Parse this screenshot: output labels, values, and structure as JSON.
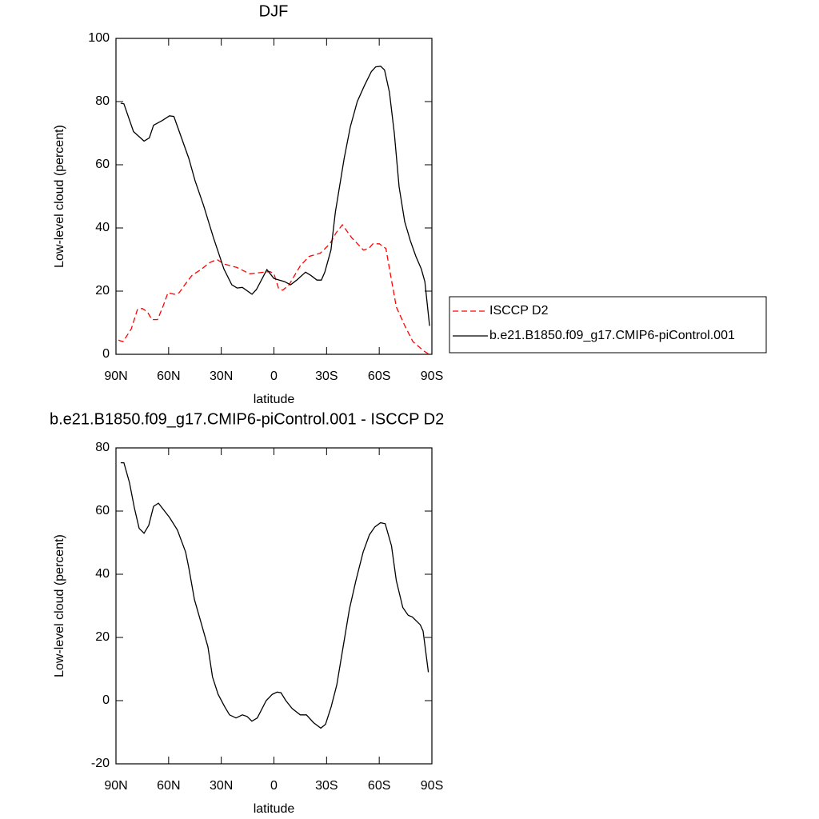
{
  "chart_data": [
    {
      "type": "line",
      "title": "DJF",
      "xlabel": "latitude",
      "ylabel": "Low-level cloud (percent)",
      "xlim": [
        90,
        -90
      ],
      "xticks": [
        {
          "value": 90,
          "label": "90N"
        },
        {
          "value": 60,
          "label": "60N"
        },
        {
          "value": 30,
          "label": "30N"
        },
        0,
        {
          "value": -30,
          "label": "30S"
        },
        {
          "value": -60,
          "label": "60S"
        },
        {
          "value": -90,
          "label": "90S"
        }
      ],
      "ylim": [
        0,
        100
      ],
      "yticks": [
        0,
        20,
        40,
        60,
        80,
        100
      ],
      "legend": "right",
      "series": [
        {
          "name": "ISCCP D2",
          "color": "#ff0000",
          "dash": true,
          "x": [
            88.6,
            86,
            81.3,
            77.7,
            75,
            72.2,
            69.5,
            66.3,
            63,
            60.4,
            56.7,
            54,
            50.8,
            46.7,
            41.2,
            36.7,
            32.5,
            28,
            21.1,
            13.9,
            5.5,
            2.3,
            0,
            -2.7,
            -5,
            -8.6,
            -15,
            -20,
            -26.4,
            -31.9,
            -35.5,
            -39,
            -44.2,
            -51,
            -54,
            -56.4,
            -60,
            -63.8,
            -66.5,
            -69.7,
            -74.6,
            -79.2,
            -85.6,
            -88.4
          ],
          "values": [
            4.5,
            4,
            8,
            14.3,
            14.5,
            13.5,
            11,
            11,
            15.5,
            19.5,
            19,
            19.5,
            22,
            25,
            27,
            29,
            30,
            28.5,
            27.5,
            25.5,
            26,
            26.2,
            25.5,
            20.8,
            20.3,
            22,
            28,
            31,
            32,
            35,
            38.5,
            41,
            37,
            33,
            33.5,
            35,
            35,
            33.5,
            25,
            15,
            9,
            4,
            1,
            0
          ]
        },
        {
          "name": "b.e21.B1850.f09_g17.CMIP6-piControl.001",
          "color": "#000000",
          "dash": false,
          "x": [
            87.3,
            85.5,
            80,
            74,
            71,
            68.6,
            63.6,
            59.5,
            57,
            48.5,
            45,
            40,
            34.5,
            28.5,
            24,
            21,
            18,
            12.5,
            10,
            4,
            0,
            -6,
            -9.5,
            -13,
            -18,
            -21,
            -24.5,
            -27,
            -29,
            -32.5,
            -35,
            -40,
            -43.5,
            -47.5,
            -51.5,
            -55.5,
            -58,
            -60.8,
            -63,
            -65.8,
            -68.6,
            -71.3,
            -74.5,
            -77.7,
            -80.9,
            -84,
            -86,
            -88.7
          ],
          "values": [
            79.5,
            79.3,
            70.5,
            67.5,
            68.5,
            72.5,
            74,
            75.5,
            75.3,
            62,
            55,
            47,
            37,
            27,
            22,
            21,
            21.2,
            19,
            20.5,
            26.8,
            24,
            23,
            22,
            23.5,
            26,
            25,
            23.5,
            23.5,
            26,
            33,
            45,
            62,
            72,
            80,
            85,
            89.5,
            91,
            91.2,
            90,
            83,
            70,
            53,
            42,
            36,
            31,
            27,
            23,
            9
          ]
        }
      ]
    },
    {
      "type": "line",
      "title": "b.e21.B1850.f09_g17.CMIP6-piControl.001 - ISCCP D2",
      "xlabel": "latitude",
      "ylabel": "Low-level cloud (percent)",
      "xlim": [
        90,
        -90
      ],
      "xticks": [
        {
          "value": 90,
          "label": "90N"
        },
        {
          "value": 60,
          "label": "60N"
        },
        {
          "value": 30,
          "label": "30N"
        },
        0,
        {
          "value": -30,
          "label": "30S"
        },
        {
          "value": -60,
          "label": "60S"
        },
        {
          "value": -90,
          "label": "90S"
        }
      ],
      "ylim": [
        -20,
        80
      ],
      "yticks": [
        -20,
        0,
        20,
        40,
        60,
        80
      ],
      "series": [
        {
          "color": "#000000",
          "dash": false,
          "x": [
            87.3,
            85.5,
            82.3,
            79.5,
            76.8,
            74,
            71.3,
            68.6,
            65.8,
            59.5,
            55,
            50.3,
            48.5,
            45.3,
            42.2,
            37.6,
            35,
            31.8,
            28,
            25.3,
            21.6,
            18,
            15.3,
            12.6,
            9.5,
            4.4,
            0.9,
            -1.8,
            -4,
            -6.8,
            -10.4,
            -15,
            -18.5,
            -22.6,
            -26.7,
            -29.4,
            -32.6,
            -35.8,
            -39.4,
            -43,
            -46.7,
            -50.8,
            -54.4,
            -57.5,
            -60.7,
            -63.4,
            -67,
            -69.7,
            -73.4,
            -76.5,
            -78.8,
            -83.4,
            -85,
            -88
          ],
          "values": [
            75.3,
            75.3,
            69,
            61,
            54.5,
            53,
            55.5,
            61.5,
            62.5,
            58,
            54,
            47,
            42,
            32,
            26,
            17,
            7.5,
            2,
            -2,
            -4.5,
            -5.5,
            -4.5,
            -5,
            -6.5,
            -5.5,
            0,
            2,
            2.7,
            2.5,
            0,
            -2.5,
            -4.5,
            -4.5,
            -7,
            -8.7,
            -7.5,
            -2,
            5,
            17,
            29,
            38,
            47,
            52.5,
            55,
            56.3,
            56,
            49,
            38,
            29.5,
            27,
            26.5,
            24,
            22,
            9
          ]
        }
      ]
    }
  ]
}
